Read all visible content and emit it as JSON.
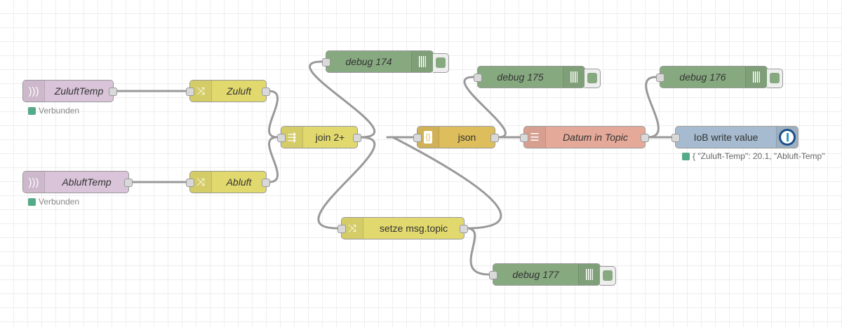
{
  "colors": {
    "inject": "#dac4d9",
    "change": "#e2d96e",
    "join": "#e2d96e",
    "debug": "#87a980",
    "json": "#debd5c",
    "function": "#e5a999",
    "iob": "#a6bbcf",
    "status": "#5a8"
  },
  "nodes": {
    "zuluft_temp": {
      "label": "ZuluftTemp",
      "icon": "signal-icon",
      "status": "Verbunden"
    },
    "abluft_temp": {
      "label": "AbluftTemp",
      "icon": "signal-icon",
      "status": "Verbunden"
    },
    "zuluft": {
      "label": "Zuluft",
      "icon": "shuffle-icon"
    },
    "abluft": {
      "label": "Abluft",
      "icon": "shuffle-icon"
    },
    "join": {
      "label": "join 2+",
      "icon": "join-icon"
    },
    "debug174": {
      "label": "debug 174"
    },
    "debug175": {
      "label": "debug 175"
    },
    "debug176": {
      "label": "debug 176"
    },
    "debug177": {
      "label": "debug 177"
    },
    "json": {
      "label": "json",
      "icon": "braces-icon",
      "glyph": "{}"
    },
    "datum": {
      "label": "Datum in Topic",
      "icon": "template-icon"
    },
    "iob": {
      "label": "IoB write value",
      "icon": "iobroker-icon",
      "status": "{ \"Zuluft-Temp\": 20.1, \"Abluft-Temp\""
    },
    "setze": {
      "label": "setze msg.topic",
      "icon": "shuffle-icon"
    }
  }
}
